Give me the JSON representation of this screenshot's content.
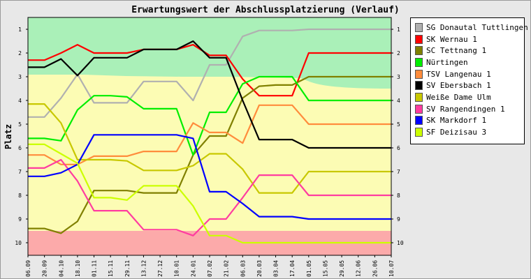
{
  "chart_data": {
    "type": "line",
    "title": "Erwartungswert der Abschlussplatzierung (Verlauf)",
    "ylabel": "Platz",
    "xlabel": "",
    "ylim": [
      1,
      10
    ],
    "y_inverted": true,
    "yticks": [
      1,
      2,
      3,
      4,
      5,
      6,
      7,
      8,
      9,
      10
    ],
    "categories": [
      "06.09",
      "20.09",
      "04.10",
      "18.10",
      "01.11",
      "15.11",
      "29.11",
      "13.12",
      "27.12",
      "10.01",
      "24.01",
      "07.02",
      "21.02",
      "06.03",
      "20.03",
      "03.04",
      "17.04",
      "01.05",
      "15.05",
      "29.05",
      "12.06",
      "26.06",
      "10.07"
    ],
    "background_zones": [
      {
        "color": "#aaf0b8"
      },
      {
        "color": "#fcfcb4"
      },
      {
        "color": "#fcaaaa"
      }
    ],
    "series": [
      {
        "name": "SG Donautal Tuttlingen 1",
        "color": "#b0b0b0",
        "values": [
          4.7,
          4.7,
          3.9,
          2.9,
          4.1,
          4.1,
          4.1,
          3.2,
          3.2,
          3.2,
          4.0,
          2.5,
          2.5,
          1.3,
          1.05,
          1.05,
          1.05,
          1.0,
          1.0,
          1.0,
          1.0,
          1.0,
          1.0
        ]
      },
      {
        "name": "SK Wernau 1",
        "color": "#ff0000",
        "values": [
          2.3,
          2.3,
          2.0,
          1.65,
          2.0,
          2.0,
          2.0,
          1.85,
          1.85,
          1.85,
          1.65,
          2.1,
          2.1,
          3.1,
          3.8,
          3.8,
          3.8,
          2.0,
          2.0,
          2.0,
          2.0,
          2.0,
          2.0
        ]
      },
      {
        "name": "SC Tettnang 1",
        "color": "#808000",
        "values": [
          9.4,
          9.4,
          9.6,
          9.1,
          7.8,
          7.8,
          7.8,
          7.9,
          7.9,
          7.9,
          6.3,
          5.5,
          5.5,
          3.9,
          3.4,
          3.35,
          3.35,
          3.0,
          3.0,
          3.0,
          3.0,
          3.0,
          3.0
        ]
      },
      {
        "name": "Nürtingen",
        "color": "#00ee00",
        "values": [
          5.6,
          5.6,
          5.7,
          4.4,
          3.8,
          3.8,
          3.85,
          4.35,
          4.35,
          4.35,
          6.3,
          4.5,
          4.5,
          3.3,
          3.0,
          3.0,
          3.0,
          4.0,
          4.0,
          4.0,
          4.0,
          4.0,
          4.0
        ]
      },
      {
        "name": "TSV Langenau 1",
        "color": "#ff8c3c",
        "values": [
          6.3,
          6.3,
          6.7,
          6.7,
          6.35,
          6.35,
          6.35,
          6.15,
          6.15,
          6.15,
          4.95,
          5.35,
          5.35,
          5.8,
          4.2,
          4.2,
          4.2,
          5.0,
          5.0,
          5.0,
          5.0,
          5.0,
          5.0
        ]
      },
      {
        "name": "SV Ebersbach 1",
        "color": "#000000",
        "values": [
          2.6,
          2.6,
          2.25,
          2.95,
          2.2,
          2.2,
          2.2,
          1.85,
          1.85,
          1.85,
          1.5,
          2.2,
          2.2,
          4.0,
          5.65,
          5.65,
          5.65,
          6.0,
          6.0,
          6.0,
          6.0,
          6.0,
          6.0
        ]
      },
      {
        "name": "Weiße Dame Ulm",
        "color": "#c8c800",
        "values": [
          4.15,
          4.15,
          4.95,
          6.5,
          6.5,
          6.5,
          6.55,
          6.95,
          6.95,
          6.95,
          6.75,
          6.25,
          6.25,
          6.9,
          7.9,
          7.9,
          7.9,
          7.0,
          7.0,
          7.0,
          7.0,
          7.0,
          7.0
        ]
      },
      {
        "name": "SV Rangendingen 1",
        "color": "#ff3ca0",
        "values": [
          6.85,
          6.85,
          6.5,
          7.4,
          8.65,
          8.65,
          8.65,
          9.45,
          9.45,
          9.45,
          9.7,
          9.0,
          9.0,
          8.1,
          7.15,
          7.15,
          7.15,
          8.0,
          8.0,
          8.0,
          8.0,
          8.0,
          8.0
        ]
      },
      {
        "name": "SK Markdorf 1",
        "color": "#0000ff",
        "values": [
          7.2,
          7.2,
          7.05,
          6.7,
          5.45,
          5.45,
          5.45,
          5.45,
          5.45,
          5.45,
          5.6,
          7.85,
          7.85,
          8.35,
          8.9,
          8.9,
          8.9,
          9.0,
          9.0,
          9.0,
          9.0,
          9.0,
          9.0
        ]
      },
      {
        "name": "SF Deizisau 3",
        "color": "#ccff00",
        "values": [
          5.85,
          5.85,
          6.25,
          6.65,
          8.1,
          8.1,
          8.2,
          7.6,
          7.6,
          7.6,
          8.45,
          9.7,
          9.7,
          10.0,
          10.0,
          10.0,
          10.0,
          10.0,
          10.0,
          10.0,
          10.0,
          10.0,
          10.0
        ]
      }
    ]
  }
}
